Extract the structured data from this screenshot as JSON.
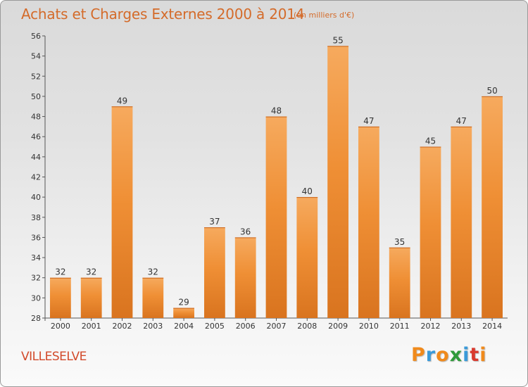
{
  "chart_data": {
    "type": "bar",
    "title": "Achats et Charges Externes 2000 à 2014",
    "unit": "(en milliers d'€)",
    "categories": [
      "2000",
      "2001",
      "2002",
      "2003",
      "2004",
      "2005",
      "2006",
      "2007",
      "2008",
      "2009",
      "2010",
      "2011",
      "2012",
      "2013",
      "2014"
    ],
    "values": [
      32,
      32,
      49,
      32,
      29,
      37,
      36,
      48,
      40,
      55,
      47,
      35,
      45,
      47,
      50
    ],
    "ylim": [
      28,
      56
    ],
    "yticks": [
      28,
      30,
      32,
      34,
      36,
      38,
      40,
      42,
      44,
      46,
      48,
      50,
      52,
      54,
      56
    ],
    "grid": false,
    "xlabel": "",
    "ylabel": "",
    "bar_color": "#ef8f35",
    "bar_color_light": "#f6aa5e",
    "bar_color_dark": "#d9741f"
  },
  "commune": "VILLESELVE",
  "logo": {
    "text": "Proxiti",
    "letters": [
      "P",
      "r",
      "o",
      "x",
      "i",
      "t",
      "i"
    ],
    "colors": [
      "#f08a1c",
      "#3a9ad9",
      "#f08a1c",
      "#2f9a3b",
      "#3a9ad9",
      "#d93a2e",
      "#f08a1c"
    ]
  }
}
